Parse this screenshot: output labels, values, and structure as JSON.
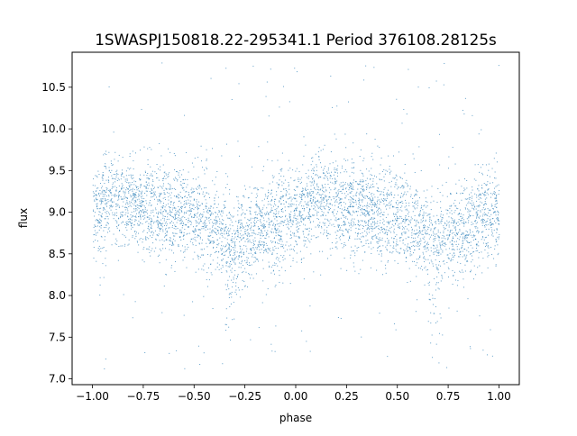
{
  "chart_data": {
    "type": "scatter",
    "title": "1SWASPJ150818.22-295341.1 Period 376108.28125s",
    "xlabel": "phase",
    "ylabel": "flux",
    "xlim": [
      -1.1,
      1.1
    ],
    "ylim": [
      6.93,
      10.92
    ],
    "x_ticks": [
      -1.0,
      -0.75,
      -0.5,
      -0.25,
      0.0,
      0.25,
      0.5,
      0.75,
      1.0
    ],
    "x_tick_labels": [
      "−1.00",
      "−0.75",
      "−0.50",
      "−0.25",
      "0.00",
      "0.25",
      "0.50",
      "0.75",
      "1.00"
    ],
    "y_ticks": [
      7.0,
      7.5,
      8.0,
      8.5,
      9.0,
      9.5,
      10.0,
      10.5
    ],
    "y_tick_labels": [
      "7.0",
      "7.5",
      "8.0",
      "8.5",
      "9.0",
      "9.5",
      "10.0",
      "10.5"
    ],
    "grid": false,
    "legend": "none",
    "marker_color": "#1f77b4",
    "phase_range": [
      -1.0,
      1.0
    ],
    "mean_curve": {
      "phase": [
        -1.0,
        -0.9,
        -0.75,
        -0.6,
        -0.5,
        -0.4,
        -0.32,
        -0.25,
        -0.15,
        -0.05,
        0.0,
        0.1,
        0.25,
        0.4,
        0.5,
        0.6,
        0.68,
        0.75,
        0.85,
        0.95,
        1.0
      ],
      "flux": [
        9.0,
        9.2,
        9.05,
        9.0,
        8.95,
        8.8,
        8.65,
        8.7,
        8.85,
        8.95,
        9.0,
        9.2,
        9.05,
        9.0,
        8.95,
        8.8,
        8.65,
        8.7,
        8.85,
        8.95,
        9.0
      ],
      "scatter_sd": 0.28
    },
    "dips": [
      {
        "phase": -0.32,
        "min_flux": 7.8
      },
      {
        "phase": 0.68,
        "min_flux": 7.8
      }
    ],
    "outlier_range": [
      7.1,
      10.8
    ]
  }
}
